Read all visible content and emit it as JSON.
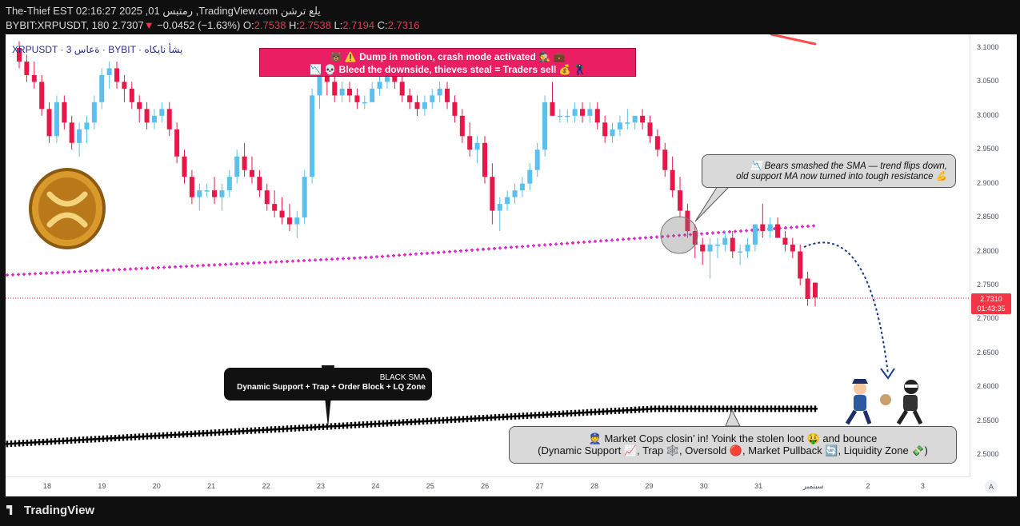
{
  "header": {
    "line1": "The-Thief EST 02:16:27 2025 ,01 رمتبس ,TradingView.com يلع ترشن",
    "symbol": "BYBIT:XRPUSDT, 180",
    "last": "2.7307",
    "arrow": "▼",
    "change": "−0.0452 (−1.63%)",
    "o_label": "O:",
    "o_val": "2.7538",
    "h_label": "H:",
    "h_val": "2.7538",
    "l_label": "L:",
    "l_val": "2.7194",
    "c_label": "C:",
    "c_val": "2.7316"
  },
  "chart_label": "XRPUSDT · 3 ةعاس · BYBIT · يشأ نايكاه",
  "current_price_tag": {
    "price": "2.7310",
    "countdown": "01:43:35"
  },
  "auto_button": "A",
  "annotations": {
    "pink_line1": "🐻 ⚠️ Dump in motion, crash mode activated 🕵️ 💼",
    "pink_line2": "📉 💀 Bleed the downside, thieves steal = Traders sell 💰 🦹",
    "bears_line1": "📉 Bears smashed the SMA — trend flips down,",
    "bears_line2": "old support MA now turned into tough resistance 💪",
    "black_title": "BLACK SMA",
    "black_sub": "Dynamic Support + Trap + Order Block + LQ Zone",
    "cops_line1": "👮 Market Cops closin’ in! Yoink the stolen loot 🤑 and bounce",
    "cops_line2": "(Dynamic Support 📈, Trap 🕸️, Oversold 🔴, Market Pullback 🔄, Liquidity Zone 💸)"
  },
  "footer": {
    "brand": "TradingView"
  },
  "colors": {
    "up": "#5bc0eb",
    "down": "#e8174a",
    "pink_sma": "#e020c8",
    "black_sma": "#000000",
    "bg_panel": "#ffffff",
    "bg_outer": "#0f0f0f"
  },
  "chart_data": {
    "type": "candlestick",
    "interval": "180",
    "ylim": [
      2.46,
      3.12
    ],
    "y_ticks": [
      "3.1000",
      "3.0500",
      "3.0000",
      "2.9500",
      "2.9000",
      "2.8500",
      "2.8000",
      "2.7500",
      "2.7000",
      "2.6500",
      "2.6000",
      "2.5500",
      "2.5000"
    ],
    "x_ticks": [
      "18",
      "19",
      "20",
      "21",
      "22",
      "23",
      "24",
      "25",
      "26",
      "27",
      "28",
      "29",
      "30",
      "31",
      "سبتمبر",
      "2",
      "3"
    ],
    "last_price": 2.731,
    "candles": [
      [
        3.1,
        3.11,
        3.07,
        3.08
      ],
      [
        3.08,
        3.09,
        3.05,
        3.06
      ],
      [
        3.06,
        3.08,
        3.04,
        3.05
      ],
      [
        3.05,
        3.06,
        3.0,
        3.01
      ],
      [
        3.01,
        3.02,
        2.96,
        2.97
      ],
      [
        2.97,
        3.03,
        2.96,
        3.02
      ],
      [
        3.02,
        3.03,
        2.98,
        2.99
      ],
      [
        2.99,
        3.0,
        2.95,
        2.96
      ],
      [
        2.96,
        2.99,
        2.94,
        2.98
      ],
      [
        2.98,
        3.0,
        2.96,
        2.99
      ],
      [
        2.99,
        3.03,
        2.98,
        3.02
      ],
      [
        3.02,
        3.07,
        3.01,
        3.06
      ],
      [
        3.06,
        3.08,
        3.04,
        3.07
      ],
      [
        3.07,
        3.08,
        3.04,
        3.05
      ],
      [
        3.05,
        3.06,
        3.02,
        3.04
      ],
      [
        3.04,
        3.05,
        3.01,
        3.02
      ],
      [
        3.02,
        3.03,
        2.99,
        3.01
      ],
      [
        3.01,
        3.02,
        2.98,
        2.99
      ],
      [
        2.99,
        3.01,
        2.98,
        3.0
      ],
      [
        3.0,
        3.02,
        2.99,
        3.01
      ],
      [
        3.01,
        3.02,
        2.97,
        2.98
      ],
      [
        2.98,
        2.99,
        2.93,
        2.94
      ],
      [
        2.94,
        2.95,
        2.9,
        2.91
      ],
      [
        2.91,
        2.92,
        2.87,
        2.88
      ],
      [
        2.88,
        2.9,
        2.86,
        2.89
      ],
      [
        2.89,
        2.9,
        2.88,
        2.89
      ],
      [
        2.89,
        2.91,
        2.87,
        2.88
      ],
      [
        2.88,
        2.9,
        2.86,
        2.89
      ],
      [
        2.89,
        2.92,
        2.88,
        2.91
      ],
      [
        2.91,
        2.95,
        2.9,
        2.94
      ],
      [
        2.94,
        2.96,
        2.91,
        2.92
      ],
      [
        2.92,
        2.94,
        2.9,
        2.91
      ],
      [
        2.91,
        2.92,
        2.88,
        2.89
      ],
      [
        2.89,
        2.9,
        2.86,
        2.87
      ],
      [
        2.87,
        2.89,
        2.85,
        2.86
      ],
      [
        2.86,
        2.88,
        2.84,
        2.85
      ],
      [
        2.85,
        2.87,
        2.83,
        2.84
      ],
      [
        2.84,
        2.86,
        2.82,
        2.85
      ],
      [
        2.85,
        2.92,
        2.84,
        2.91
      ],
      [
        2.91,
        3.04,
        2.9,
        3.03
      ],
      [
        3.03,
        3.07,
        3.01,
        3.06
      ],
      [
        3.06,
        3.09,
        3.03,
        3.05
      ],
      [
        3.05,
        3.06,
        3.02,
        3.03
      ],
      [
        3.03,
        3.05,
        3.02,
        3.04
      ],
      [
        3.04,
        3.05,
        3.02,
        3.03
      ],
      [
        3.03,
        3.04,
        3.01,
        3.02
      ],
      [
        3.02,
        3.03,
        3.01,
        3.02
      ],
      [
        3.02,
        3.05,
        3.02,
        3.04
      ],
      [
        3.04,
        3.06,
        3.03,
        3.05
      ],
      [
        3.05,
        3.07,
        3.04,
        3.06
      ],
      [
        3.06,
        3.08,
        3.04,
        3.05
      ],
      [
        3.05,
        3.06,
        3.02,
        3.03
      ],
      [
        3.03,
        3.04,
        3.01,
        3.02
      ],
      [
        3.02,
        3.03,
        3.0,
        3.01
      ],
      [
        3.01,
        3.03,
        3.0,
        3.02
      ],
      [
        3.02,
        3.04,
        3.01,
        3.03
      ],
      [
        3.03,
        3.05,
        3.02,
        3.04
      ],
      [
        3.04,
        3.05,
        3.01,
        3.02
      ],
      [
        3.02,
        3.03,
        2.99,
        3.0
      ],
      [
        3.0,
        3.01,
        2.96,
        2.97
      ],
      [
        2.97,
        2.99,
        2.94,
        2.95
      ],
      [
        2.95,
        2.97,
        2.93,
        2.96
      ],
      [
        2.96,
        2.97,
        2.9,
        2.91
      ],
      [
        2.91,
        2.93,
        2.84,
        2.86
      ],
      [
        2.86,
        2.88,
        2.83,
        2.87
      ],
      [
        2.87,
        2.89,
        2.86,
        2.88
      ],
      [
        2.88,
        2.9,
        2.87,
        2.89
      ],
      [
        2.89,
        2.91,
        2.88,
        2.9
      ],
      [
        2.9,
        2.93,
        2.89,
        2.92
      ],
      [
        2.92,
        2.96,
        2.91,
        2.95
      ],
      [
        2.95,
        3.03,
        2.94,
        3.02
      ],
      [
        3.02,
        3.05,
        3.0,
        3.0
      ],
      [
        3.0,
        3.01,
        2.99,
        3.0
      ],
      [
        3.0,
        3.01,
        2.99,
        3.0
      ],
      [
        3.0,
        3.02,
        2.99,
        3.01
      ],
      [
        3.01,
        3.02,
        2.99,
        3.0
      ],
      [
        3.0,
        3.02,
        2.99,
        3.01
      ],
      [
        3.01,
        3.02,
        2.98,
        2.99
      ],
      [
        2.99,
        3.0,
        2.96,
        2.97
      ],
      [
        2.97,
        2.99,
        2.96,
        2.98
      ],
      [
        2.98,
        3.0,
        2.97,
        2.99
      ],
      [
        2.99,
        3.01,
        2.98,
        2.99
      ],
      [
        2.99,
        3.0,
        2.98,
        3.0
      ],
      [
        3.0,
        3.01,
        2.98,
        2.99
      ],
      [
        2.99,
        3.0,
        2.96,
        2.97
      ],
      [
        2.97,
        2.98,
        2.94,
        2.95
      ],
      [
        2.95,
        2.96,
        2.91,
        2.92
      ],
      [
        2.92,
        2.94,
        2.88,
        2.89
      ],
      [
        2.89,
        2.91,
        2.85,
        2.86
      ],
      [
        2.86,
        2.87,
        2.82,
        2.83
      ],
      [
        2.83,
        2.84,
        2.79,
        2.81
      ],
      [
        2.81,
        2.82,
        2.78,
        2.8
      ],
      [
        2.8,
        2.82,
        2.76,
        2.81
      ],
      [
        2.81,
        2.82,
        2.79,
        2.81
      ],
      [
        2.81,
        2.83,
        2.8,
        2.82
      ],
      [
        2.82,
        2.83,
        2.79,
        2.8
      ],
      [
        2.8,
        2.81,
        2.78,
        2.8
      ],
      [
        2.8,
        2.82,
        2.79,
        2.81
      ],
      [
        2.81,
        2.84,
        2.8,
        2.84
      ],
      [
        2.84,
        2.87,
        2.82,
        2.83
      ],
      [
        2.83,
        2.85,
        2.82,
        2.84
      ],
      [
        2.84,
        2.85,
        2.82,
        2.82
      ],
      [
        2.82,
        2.83,
        2.8,
        2.81
      ],
      [
        2.81,
        2.82,
        2.79,
        2.8
      ],
      [
        2.8,
        2.81,
        2.75,
        2.76
      ],
      [
        2.76,
        2.77,
        2.72,
        2.73
      ],
      [
        2.754,
        2.754,
        2.719,
        2.732
      ]
    ],
    "sma_pink_start": 2.765,
    "sma_pink_end": 2.838,
    "sma_black_start": 2.516,
    "sma_black_end": 2.568
  }
}
